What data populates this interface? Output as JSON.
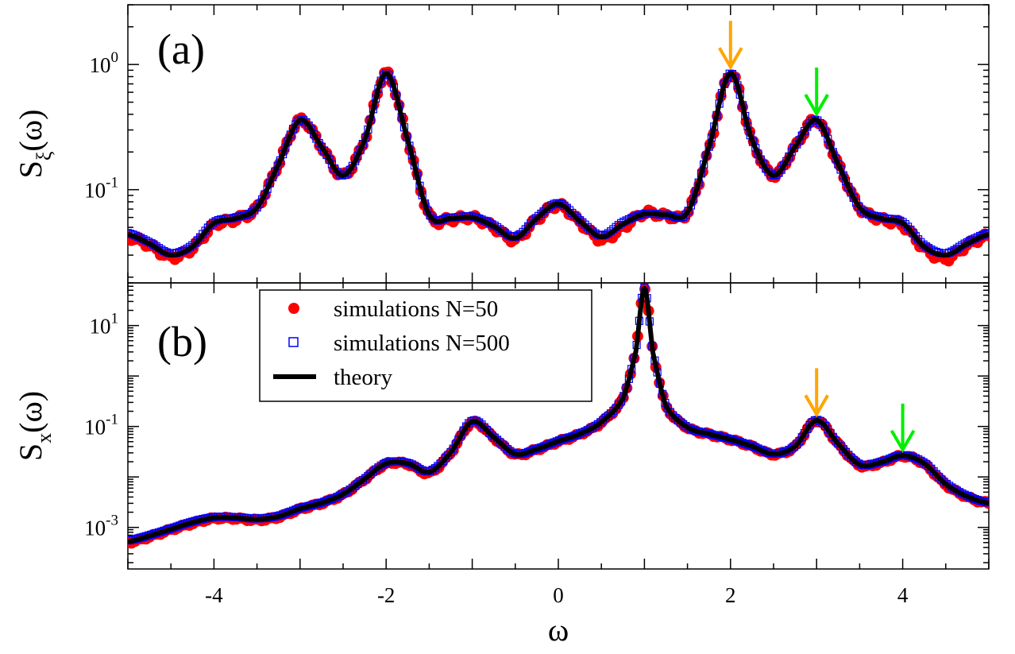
{
  "chart_data": [
    {
      "type": "line",
      "panel_label": "(a)",
      "ylabel": "S",
      "ylabel_sub": "ξ",
      "ylabel_tail": "(ω)",
      "xlabel": "",
      "xlim": [
        -5,
        5
      ],
      "ylim": [
        0.018,
        3.0
      ],
      "yscale": "log",
      "x_ticks": [
        -4,
        -2,
        0,
        2,
        4
      ],
      "y_tick_labels": [
        {
          "value": 1,
          "base": "10",
          "exp": "0"
        },
        {
          "value": 0.1,
          "base": "10",
          "exp": "-1"
        }
      ],
      "x": [
        -5,
        -4.75,
        -4.5,
        -4.25,
        -4,
        -3.75,
        -3.5,
        -3.25,
        -3,
        -2.75,
        -2.5,
        -2.25,
        -2,
        -1.75,
        -1.5,
        -1.25,
        -1,
        -0.75,
        -0.5,
        -0.25,
        0,
        0.25,
        0.5,
        0.75,
        1,
        1.25,
        1.5,
        1.75,
        2,
        2.25,
        2.5,
        2.75,
        3,
        3.25,
        3.5,
        3.75,
        4,
        4.25,
        4.5,
        4.75,
        5
      ],
      "series": [
        {
          "name": "simulations N=50",
          "values": [
            0.042,
            0.036,
            0.029,
            0.034,
            0.052,
            0.058,
            0.072,
            0.16,
            0.36,
            0.22,
            0.13,
            0.25,
            0.85,
            0.25,
            0.063,
            0.058,
            0.06,
            0.05,
            0.04,
            0.058,
            0.075,
            0.055,
            0.04,
            0.05,
            0.065,
            0.062,
            0.066,
            0.21,
            0.85,
            0.25,
            0.13,
            0.22,
            0.36,
            0.16,
            0.072,
            0.058,
            0.052,
            0.034,
            0.028,
            0.036,
            0.043
          ]
        },
        {
          "name": "simulations N=500",
          "values": [
            0.045,
            0.038,
            0.031,
            0.036,
            0.055,
            0.06,
            0.072,
            0.16,
            0.36,
            0.22,
            0.13,
            0.25,
            0.85,
            0.25,
            0.064,
            0.06,
            0.061,
            0.052,
            0.042,
            0.06,
            0.078,
            0.057,
            0.043,
            0.055,
            0.064,
            0.063,
            0.066,
            0.22,
            0.85,
            0.25,
            0.13,
            0.22,
            0.36,
            0.16,
            0.072,
            0.06,
            0.055,
            0.036,
            0.031,
            0.038,
            0.045
          ]
        },
        {
          "name": "theory",
          "values": [
            0.044,
            0.037,
            0.03,
            0.035,
            0.054,
            0.059,
            0.072,
            0.16,
            0.36,
            0.22,
            0.13,
            0.25,
            0.85,
            0.25,
            0.063,
            0.059,
            0.06,
            0.051,
            0.041,
            0.059,
            0.077,
            0.056,
            0.042,
            0.053,
            0.064,
            0.063,
            0.066,
            0.22,
            0.85,
            0.25,
            0.13,
            0.22,
            0.36,
            0.16,
            0.072,
            0.059,
            0.054,
            0.035,
            0.03,
            0.037,
            0.044
          ]
        }
      ],
      "arrows": [
        {
          "x": 2,
          "y": 0.85,
          "color": "#FFA500"
        },
        {
          "x": 3,
          "y": 0.36,
          "color": "#00EE00"
        }
      ]
    },
    {
      "type": "line",
      "panel_label": "(b)",
      "ylabel": "S",
      "ylabel_sub": "x",
      "ylabel_tail": "(ω)",
      "xlabel": "ω",
      "xlim": [
        -5,
        5
      ],
      "ylim": [
        0.00015,
        70
      ],
      "yscale": "log",
      "x_ticks": [
        -4,
        -2,
        0,
        2,
        4
      ],
      "y_tick_labels": [
        {
          "value": 10,
          "base": "10",
          "exp": "1"
        },
        {
          "value": 0.1,
          "base": "10",
          "exp": "-1"
        },
        {
          "value": 0.001,
          "base": "10",
          "exp": "-3"
        }
      ],
      "x": [
        -5,
        -4.75,
        -4.5,
        -4.25,
        -4,
        -3.75,
        -3.5,
        -3.25,
        -3,
        -2.75,
        -2.5,
        -2.25,
        -2,
        -1.75,
        -1.5,
        -1.25,
        -1,
        -0.75,
        -0.5,
        -0.25,
        0,
        0.25,
        0.5,
        0.75,
        0.9,
        1,
        1.1,
        1.25,
        1.5,
        1.75,
        2,
        2.25,
        2.5,
        2.75,
        3,
        3.25,
        3.5,
        3.75,
        4,
        4.25,
        4.5,
        4.75,
        5
      ],
      "series": [
        {
          "name": "simulations N=50",
          "values": [
            0.0005,
            0.00065,
            0.0009,
            0.0012,
            0.0015,
            0.0015,
            0.0014,
            0.0016,
            0.0023,
            0.003,
            0.0045,
            0.009,
            0.018,
            0.018,
            0.012,
            0.03,
            0.12,
            0.06,
            0.028,
            0.035,
            0.05,
            0.07,
            0.12,
            0.35,
            3.0,
            55,
            2.8,
            0.25,
            0.095,
            0.07,
            0.055,
            0.04,
            0.028,
            0.04,
            0.13,
            0.045,
            0.017,
            0.019,
            0.026,
            0.018,
            0.007,
            0.004,
            0.003
          ]
        },
        {
          "name": "simulations N=500",
          "values": [
            0.00055,
            0.0007,
            0.00095,
            0.0013,
            0.0016,
            0.0016,
            0.0015,
            0.0017,
            0.0024,
            0.0031,
            0.0046,
            0.0092,
            0.019,
            0.019,
            0.013,
            0.031,
            0.13,
            0.062,
            0.029,
            0.036,
            0.052,
            0.072,
            0.125,
            0.36,
            3.1,
            56,
            2.9,
            0.26,
            0.097,
            0.072,
            0.056,
            0.041,
            0.029,
            0.041,
            0.135,
            0.046,
            0.018,
            0.02,
            0.027,
            0.019,
            0.0075,
            0.0042,
            0.0031
          ]
        },
        {
          "name": "theory",
          "values": [
            0.00052,
            0.00068,
            0.00092,
            0.00125,
            0.00155,
            0.00155,
            0.00145,
            0.00165,
            0.00235,
            0.00305,
            0.00455,
            0.0091,
            0.0185,
            0.0185,
            0.0125,
            0.0305,
            0.125,
            0.061,
            0.0285,
            0.0355,
            0.051,
            0.071,
            0.122,
            0.355,
            3.05,
            55,
            2.85,
            0.255,
            0.096,
            0.071,
            0.0555,
            0.0405,
            0.0285,
            0.0405,
            0.132,
            0.0455,
            0.0175,
            0.0195,
            0.0265,
            0.0185,
            0.0072,
            0.0041,
            0.00305
          ]
        }
      ],
      "arrows": [
        {
          "x": 3,
          "y": 0.13,
          "color": "#FFA500"
        },
        {
          "x": 4,
          "y": 0.026,
          "color": "#00EE00"
        }
      ]
    }
  ],
  "legend": {
    "entries": [
      {
        "label": "simulations N=50",
        "marker": "circle",
        "color": "#FF0000"
      },
      {
        "label": "simulations N=500",
        "marker": "square",
        "color": "#0000FF"
      },
      {
        "label": "theory",
        "marker": "line",
        "color": "#000000"
      }
    ]
  },
  "colors": {
    "n50": "#FF0000",
    "n500": "#0000FF",
    "theory": "#000000",
    "arrow_orange": "#FFA500",
    "arrow_green": "#00EE00"
  }
}
